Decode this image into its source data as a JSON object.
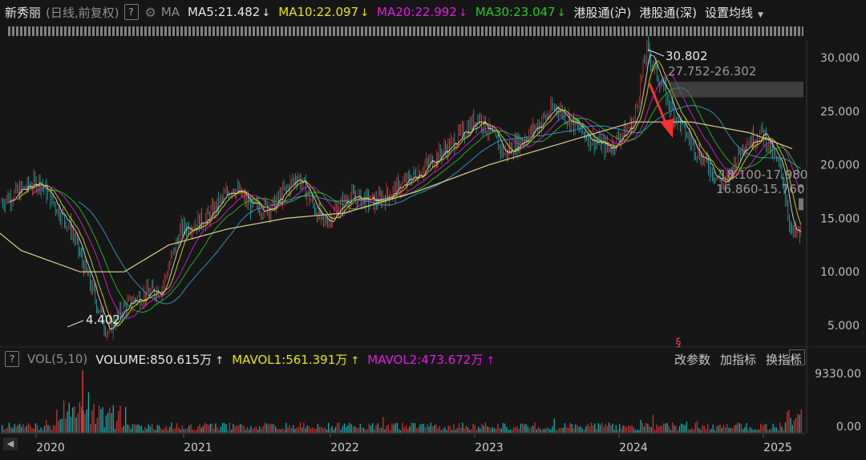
{
  "header": {
    "title": "新秀丽",
    "period": "(日线,前复权)",
    "help": "?",
    "ma_label": "MA",
    "ma_items": [
      {
        "label": "MA5:21.482",
        "color": "#e6e6e6"
      },
      {
        "label": "MA10:22.097",
        "color": "#e8e800"
      },
      {
        "label": "MA20:22.992",
        "color": "#e020e0"
      },
      {
        "label": "MA30:23.047",
        "color": "#22cc22"
      }
    ],
    "hk_sh": "港股通(沪)",
    "hk_sz": "港股通(深)",
    "settings": "设置均线"
  },
  "volume_header": {
    "label": "VOL(5,10)",
    "items": [
      {
        "label": "VOLUME:850.615万",
        "color": "#e6e6e6"
      },
      {
        "label": "MAVOL1:561.391万",
        "color": "#e8e800"
      },
      {
        "label": "MAVOL2:473.672万",
        "color": "#e020e0"
      }
    ],
    "actions": [
      "改参数",
      "加指标",
      "换指标"
    ],
    "close": "✕"
  },
  "chart_data": {
    "type": "candlestick",
    "price_axis_ticks": [
      "30.000",
      "25.000",
      "20.000",
      "15.000",
      "10.000",
      "5.000"
    ],
    "volume_axis_ticks": [
      "9330.00",
      "0.00"
    ],
    "x_axis_ticks": [
      "2020",
      "2021",
      "2022",
      "2023",
      "2024",
      "2025"
    ],
    "annotations": [
      "30.802",
      "27.752-26.302",
      "4.402",
      "18.100-17.980",
      "16.860-15.760"
    ],
    "ylim": [
      3,
      32
    ],
    "price_path": [
      [
        2019.0,
        16.5
      ],
      [
        2019.3,
        18.5
      ],
      [
        2019.55,
        14.0
      ],
      [
        2019.75,
        7.0
      ],
      [
        2019.83,
        4.4
      ],
      [
        2019.95,
        6.5
      ],
      [
        2020.05,
        7.5
      ],
      [
        2020.25,
        8.5
      ],
      [
        2020.4,
        14.0
      ],
      [
        2020.6,
        15.0
      ],
      [
        2020.8,
        18.0
      ],
      [
        2020.95,
        16.0
      ],
      [
        2021.1,
        16.0
      ],
      [
        2021.3,
        19.0
      ],
      [
        2021.5,
        14.5
      ],
      [
        2021.7,
        17.0
      ],
      [
        2021.9,
        16.5
      ],
      [
        2022.1,
        18.0
      ],
      [
        2022.3,
        20.0
      ],
      [
        2022.5,
        22.0
      ],
      [
        2022.7,
        24.5
      ],
      [
        2022.9,
        21.0
      ],
      [
        2023.1,
        23.0
      ],
      [
        2023.3,
        25.5
      ],
      [
        2023.5,
        23.0
      ],
      [
        2023.7,
        21.5
      ],
      [
        2023.9,
        24.0
      ],
      [
        2024.0,
        30.8
      ],
      [
        2024.2,
        25.0
      ],
      [
        2024.35,
        22.0
      ],
      [
        2024.5,
        19.5
      ],
      [
        2024.6,
        18.0
      ],
      [
        2024.75,
        22.0
      ],
      [
        2024.9,
        23.0
      ],
      [
        2025.05,
        19.0
      ],
      [
        2025.12,
        13.5
      ]
    ],
    "ma_long_path": [
      [
        2019.0,
        19.5
      ],
      [
        2019.4,
        16.5
      ],
      [
        2019.8,
        12.0
      ],
      [
        2020.2,
        10.0
      ],
      [
        2020.5,
        10.0
      ],
      [
        2020.8,
        12.5
      ],
      [
        2021.2,
        14.0
      ],
      [
        2021.6,
        15.0
      ],
      [
        2022.0,
        15.5
      ],
      [
        2022.5,
        17.5
      ],
      [
        2023.0,
        20.0
      ],
      [
        2023.5,
        22.0
      ],
      [
        2024.0,
        24.0
      ],
      [
        2024.4,
        24.0
      ],
      [
        2024.8,
        23.0
      ],
      [
        2025.1,
        21.5
      ]
    ],
    "colors": {
      "up": "#e83a3a",
      "down": "#18c8c8",
      "ma_long": "#d8d08a",
      "arrow": "#ff3030"
    }
  }
}
